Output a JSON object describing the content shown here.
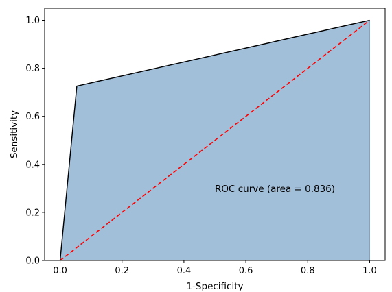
{
  "chart_data": {
    "type": "area",
    "xlabel": "1-Specificity",
    "ylabel": "Sensitivity",
    "xlim": [
      -0.05,
      1.05
    ],
    "ylim": [
      0.0,
      1.05
    ],
    "x_ticks": [
      "0.0",
      "0.2",
      "0.4",
      "0.6",
      "0.8",
      "1.0"
    ],
    "y_ticks": [
      "0.0",
      "0.2",
      "0.4",
      "0.6",
      "0.8",
      "1.0"
    ],
    "series": [
      {
        "x": [
          0.0,
          0.054,
          1.0
        ],
        "y": [
          0.0,
          0.726,
          1.0
        ]
      }
    ],
    "chance_line": {
      "x": [
        0.0,
        1.0
      ],
      "y": [
        0.0,
        1.0
      ]
    },
    "annotation": {
      "text": "ROC curve (area = 0.836)",
      "x": 0.5,
      "y": 0.3
    },
    "colors": {
      "fill": "#a2bfda",
      "fill_edge": "#7a9fc8",
      "curve": "#000000",
      "chance_line": "#ff0000",
      "axes": "#000000"
    },
    "grid": false,
    "legend": "none"
  }
}
